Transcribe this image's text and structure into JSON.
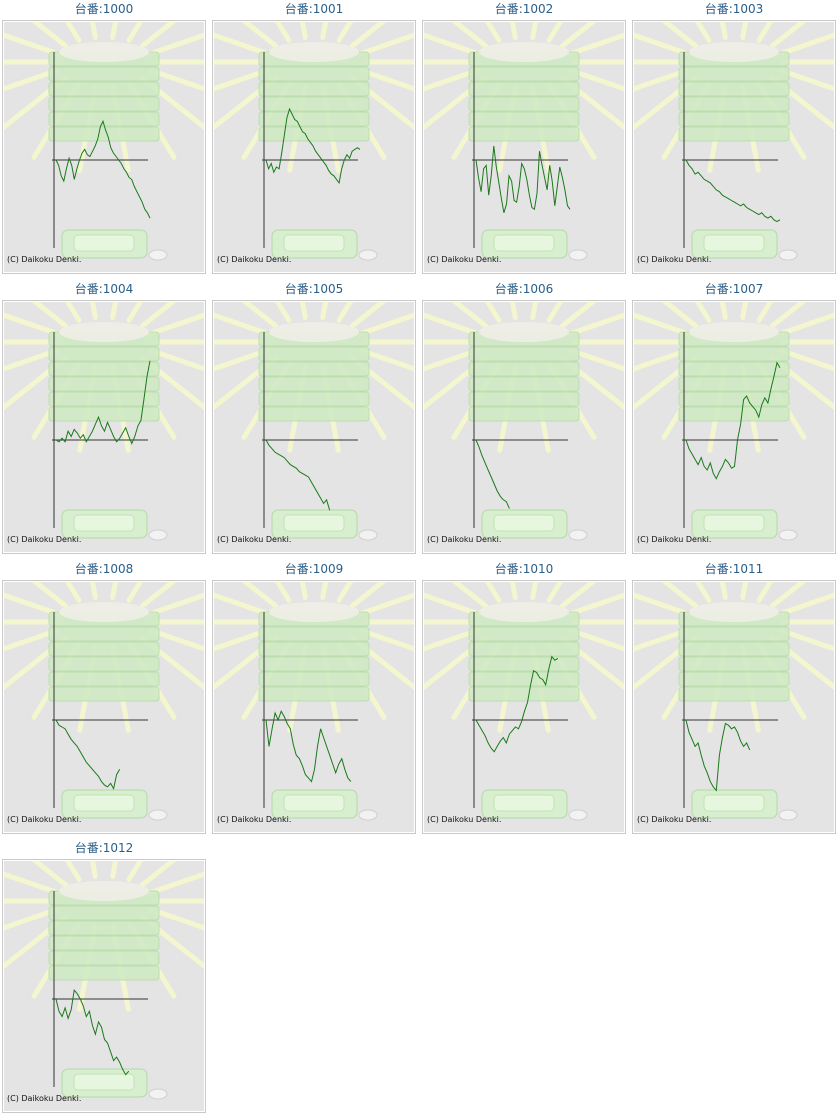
{
  "credit": "(C) Daikoku Denki.",
  "colors": {
    "title": "#2a5f8a",
    "line": "#1a7a1a",
    "panel_bg": "#e4e4e4",
    "axis": "#333333",
    "rays": "#f4f6cf",
    "machine": "#cfeac4"
  },
  "charts": [
    {
      "title": "台番:1000",
      "chart_data": {
        "type": "line",
        "x_range": [
          0,
          100
        ],
        "y_range": [
          -100,
          100
        ],
        "values": [
          0,
          -6,
          -18,
          -24,
          -10,
          2,
          -6,
          -22,
          -10,
          0,
          8,
          12,
          6,
          4,
          10,
          16,
          24,
          38,
          44,
          34,
          26,
          14,
          8,
          4,
          0,
          -4,
          -10,
          -14,
          -20,
          -22,
          -30,
          -36,
          -42,
          -48,
          -56,
          -60,
          -66
        ]
      }
    },
    {
      "title": "台番:1001",
      "chart_data": {
        "type": "line",
        "x_range": [
          0,
          100
        ],
        "y_range": [
          -100,
          100
        ],
        "values": [
          0,
          -10,
          -4,
          -14,
          -8,
          -10,
          8,
          28,
          48,
          58,
          52,
          46,
          44,
          38,
          32,
          30,
          24,
          20,
          16,
          10,
          6,
          2,
          -2,
          -6,
          -12,
          -16,
          -18,
          -22,
          -26,
          -10,
          0,
          6,
          2,
          10,
          12,
          14,
          12
        ]
      }
    },
    {
      "title": "台番:1002",
      "chart_data": {
        "type": "line",
        "x_range": [
          0,
          100
        ],
        "y_range": [
          -100,
          100
        ],
        "values": [
          0,
          -20,
          -36,
          -10,
          -6,
          -40,
          -18,
          16,
          -8,
          -26,
          -44,
          -60,
          -50,
          -18,
          -24,
          -46,
          -48,
          -30,
          -4,
          -10,
          -22,
          -40,
          -54,
          -56,
          -38,
          10,
          -6,
          -20,
          -34,
          -6,
          -24,
          -52,
          -30,
          -8,
          -20,
          -34,
          -52,
          -56
        ]
      }
    },
    {
      "title": "台番:1003",
      "chart_data": {
        "type": "line",
        "x_range": [
          0,
          100
        ],
        "y_range": [
          -100,
          100
        ],
        "values": [
          0,
          -6,
          -10,
          -16,
          -14,
          -18,
          -22,
          -24,
          -26,
          -30,
          -34,
          -36,
          -40,
          -42,
          -44,
          -46,
          -48,
          -50,
          -52,
          -50,
          -54,
          -56,
          -58,
          -60,
          -62,
          -60,
          -64,
          -66,
          -64,
          -68,
          -70,
          -68
        ]
      }
    },
    {
      "title": "台番:1004",
      "chart_data": {
        "type": "line",
        "x_range": [
          0,
          100
        ],
        "y_range": [
          -100,
          100
        ],
        "values": [
          0,
          -2,
          2,
          -2,
          10,
          4,
          12,
          8,
          2,
          6,
          -2,
          4,
          10,
          18,
          26,
          16,
          10,
          20,
          12,
          4,
          -2,
          2,
          8,
          14,
          4,
          -4,
          4,
          16,
          22,
          46,
          72,
          90
        ]
      }
    },
    {
      "title": "台番:1005",
      "chart_data": {
        "type": "line",
        "x_range": [
          0,
          100
        ],
        "y_range": [
          -100,
          100
        ],
        "values": [
          0,
          -6,
          -10,
          -14,
          -16,
          -18,
          -20,
          -24,
          -28,
          -30,
          -32,
          -36,
          -38,
          -40,
          -42,
          -48,
          -54,
          -60,
          -66,
          -72,
          -68,
          -80
        ]
      }
    },
    {
      "title": "台番:1006",
      "chart_data": {
        "type": "line",
        "x_range": [
          0,
          100
        ],
        "y_range": [
          -100,
          100
        ],
        "values": [
          0,
          -8,
          -18,
          -26,
          -34,
          -42,
          -50,
          -58,
          -64,
          -68,
          -70,
          -78
        ]
      }
    },
    {
      "title": "台番:1007",
      "chart_data": {
        "type": "line",
        "x_range": [
          0,
          100
        ],
        "y_range": [
          -100,
          100
        ],
        "values": [
          0,
          -10,
          -16,
          -22,
          -28,
          -20,
          -30,
          -34,
          -26,
          -38,
          -44,
          -36,
          -30,
          -22,
          -26,
          -32,
          -30,
          0,
          18,
          46,
          50,
          42,
          38,
          34,
          26,
          40,
          48,
          42,
          58,
          72,
          88,
          82
        ]
      }
    },
    {
      "title": "台番:1008",
      "chart_data": {
        "type": "line",
        "x_range": [
          0,
          100
        ],
        "y_range": [
          -100,
          100
        ],
        "values": [
          0,
          -6,
          -8,
          -10,
          -16,
          -22,
          -26,
          -30,
          -36,
          -42,
          -48,
          -52,
          -56,
          -60,
          -64,
          -70,
          -74,
          -76,
          -72,
          -78,
          -62,
          -56
        ]
      }
    },
    {
      "title": "台番:1009",
      "chart_data": {
        "type": "line",
        "x_range": [
          0,
          100
        ],
        "y_range": [
          -100,
          100
        ],
        "values": [
          0,
          -30,
          -10,
          8,
          0,
          10,
          4,
          -4,
          -10,
          -28,
          -40,
          -44,
          -52,
          -62,
          -66,
          -70,
          -56,
          -30,
          -10,
          -20,
          -30,
          -40,
          -50,
          -60,
          -50,
          -44,
          -56,
          -66,
          -70
        ]
      }
    },
    {
      "title": "台番:1010",
      "chart_data": {
        "type": "line",
        "x_range": [
          0,
          100
        ],
        "y_range": [
          -100,
          100
        ],
        "values": [
          0,
          -6,
          -12,
          -18,
          -26,
          -32,
          -36,
          -30,
          -24,
          -20,
          -26,
          -16,
          -12,
          -8,
          -10,
          -2,
          10,
          20,
          40,
          56,
          54,
          48,
          46,
          40,
          58,
          72,
          68,
          70
        ]
      }
    },
    {
      "title": "台番:1011",
      "chart_data": {
        "type": "line",
        "x_range": [
          0,
          100
        ],
        "y_range": [
          -100,
          100
        ],
        "values": [
          0,
          -14,
          -22,
          -30,
          -26,
          -40,
          -52,
          -60,
          -70,
          -76,
          -80,
          -40,
          -20,
          -4,
          -6,
          -10,
          -8,
          -14,
          -24,
          -30,
          -26,
          -34
        ]
      }
    },
    {
      "title": "台番:1012",
      "chart_data": {
        "type": "line",
        "x_range": [
          0,
          100
        ],
        "y_range": [
          -100,
          100
        ],
        "values": [
          0,
          -14,
          -20,
          -10,
          -22,
          -12,
          10,
          6,
          0,
          -8,
          -20,
          -14,
          -30,
          -40,
          -26,
          -32,
          -46,
          -50,
          -60,
          -70,
          -66,
          -72,
          -80,
          -86,
          -82
        ]
      }
    }
  ]
}
